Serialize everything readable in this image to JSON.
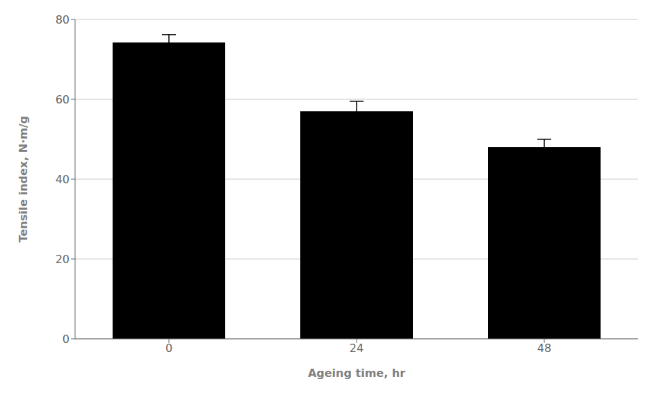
{
  "chart_data": {
    "type": "bar",
    "categories": [
      "0",
      "24",
      "48"
    ],
    "values": [
      74.2,
      57.0,
      48.0
    ],
    "errors": [
      2.0,
      2.5,
      2.0
    ],
    "xlabel": "Ageing time, hr",
    "ylabel": "Tensile index, N·m/g",
    "ylim": [
      0,
      80
    ],
    "yticks": [
      0,
      20,
      40,
      60,
      80
    ],
    "grid": true
  }
}
